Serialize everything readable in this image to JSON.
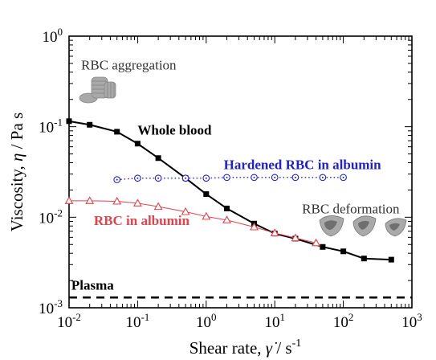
{
  "chart_data": {
    "type": "line",
    "xscale": "log",
    "yscale": "log",
    "xlim": [
      0.01,
      1000
    ],
    "ylim": [
      0.001,
      1
    ],
    "x_major_ticks": [
      0.01,
      0.1,
      1,
      10,
      100,
      1000
    ],
    "y_major_ticks": [
      0.001,
      0.01,
      0.1,
      1
    ],
    "x_tick_labels": [
      {
        "base": "10",
        "exp": "-2"
      },
      {
        "base": "10",
        "exp": "-1"
      },
      {
        "base": "10",
        "exp": "0"
      },
      {
        "base": "10",
        "exp": "1"
      },
      {
        "base": "10",
        "exp": "2"
      },
      {
        "base": "10",
        "exp": "3"
      }
    ],
    "y_tick_labels": [
      {
        "base": "10",
        "exp": "-3"
      },
      {
        "base": "10",
        "exp": "-2"
      },
      {
        "base": "10",
        "exp": "-1"
      },
      {
        "base": "10",
        "exp": "0"
      }
    ],
    "xlabel": {
      "prefix": "Shear rate, ",
      "symbol": "γ̇",
      "suffix": " / s",
      "exp": "-1"
    },
    "ylabel": {
      "prefix": "Viscosity, ",
      "symbol": "η",
      "suffix": " / Pa s"
    },
    "grid": false,
    "series": [
      {
        "name": "Whole blood",
        "color": "#000000",
        "marker": "filled-square",
        "line": "solid",
        "x": [
          0.01,
          0.02,
          0.05,
          0.1,
          0.2,
          0.5,
          1,
          2,
          5,
          10,
          20,
          50,
          100,
          200,
          500
        ],
        "y": [
          0.115,
          0.105,
          0.088,
          0.065,
          0.045,
          0.027,
          0.018,
          0.0125,
          0.0085,
          0.0066,
          0.0058,
          0.0047,
          0.0042,
          0.0035,
          0.0034
        ]
      },
      {
        "name": "Hardened RBC in albumin",
        "color": "#1f1fd6",
        "marker": "open-circle-dot",
        "line": "dotted",
        "x": [
          0.05,
          0.1,
          0.2,
          0.5,
          1,
          2,
          5,
          10,
          20,
          50,
          100
        ],
        "y": [
          0.026,
          0.027,
          0.027,
          0.027,
          0.027,
          0.0275,
          0.0275,
          0.0275,
          0.0275,
          0.0275,
          0.0275
        ]
      },
      {
        "name": "RBC in albumin",
        "color": "#e8404a",
        "marker": "open-triangle",
        "line": "solid",
        "x": [
          0.01,
          0.02,
          0.05,
          0.1,
          0.2,
          0.5,
          1,
          2,
          5,
          10,
          20,
          40
        ],
        "y": [
          0.0152,
          0.0152,
          0.015,
          0.0143,
          0.0131,
          0.0115,
          0.0102,
          0.0093,
          0.0078,
          0.0067,
          0.0059,
          0.0052
        ]
      },
      {
        "name": "Plasma",
        "color": "#000000",
        "marker": "none",
        "line": "dashed",
        "x": [
          0.01,
          1000
        ],
        "y": [
          0.0013,
          0.0013
        ]
      }
    ],
    "annotations": [
      {
        "text": "RBC aggregation",
        "x": 0.015,
        "y": 0.43
      },
      {
        "text": "RBC deformation",
        "x": 25,
        "y": 0.011
      }
    ],
    "colors": {
      "whole_blood": "#000000",
      "hardened": "#1f1fd6",
      "rbc_albumin": "#e8404a",
      "plasma": "#000000",
      "icon_fill": "#a9a9a9",
      "icon_inner": "#6f6f6f"
    },
    "icons": [
      "rbc-aggregation-icon",
      "rbc-deformation-icon"
    ]
  }
}
